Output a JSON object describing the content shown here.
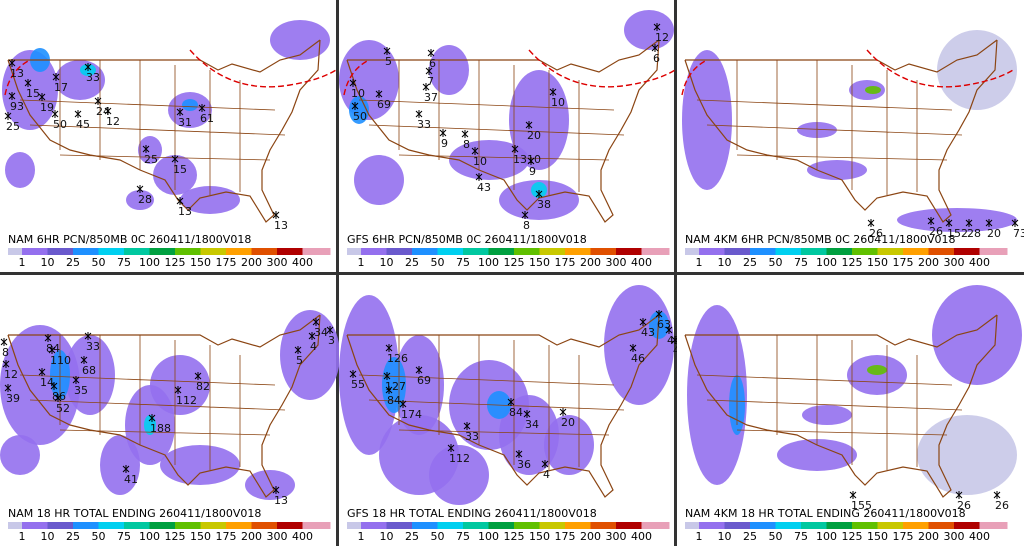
{
  "panels": [
    {
      "title": "NAM 6HR PCN/850MB 0C 260411/1800V018",
      "freezing_line": true,
      "labels": [
        "13",
        "15",
        "17",
        "33",
        "93",
        "19",
        "50",
        "45",
        "24",
        "12",
        "31",
        "61",
        "25",
        "25",
        "15",
        "28",
        "13",
        "13"
      ]
    },
    {
      "title": "GFS 6HR PCN/850MB 0C 260411/1800V018",
      "freezing_line": true,
      "labels": [
        "12",
        "6",
        "5",
        "6",
        "7",
        "37",
        "10",
        "69",
        "50",
        "33",
        "10",
        "20",
        "9",
        "8",
        "10",
        "1310",
        "9",
        "43",
        "38",
        "8"
      ]
    },
    {
      "title": "NAM 4KM 6HR PCN/850MB 0C 260411/1800V018",
      "freezing_line": true,
      "labels": [
        "26",
        "26",
        "152",
        "28",
        "20",
        "73"
      ]
    },
    {
      "title": "NAM 18 HR TOTAL ENDING 260411/1800V018",
      "freezing_line": false,
      "labels": [
        "8",
        "12",
        "39",
        "84",
        "110",
        "68",
        "33",
        "14",
        "86",
        "52",
        "35",
        "112",
        "82",
        "188",
        "41",
        "13",
        "4",
        "34",
        "5",
        "3"
      ]
    },
    {
      "title": "GFS 18 HR TOTAL ENDING 260411/1800V018",
      "freezing_line": false,
      "labels": [
        "126",
        "55",
        "127",
        "69",
        "84",
        "174",
        "84",
        "33",
        "34",
        "20",
        "112",
        "36",
        "4",
        "43",
        "46",
        "63",
        "43",
        "44"
      ]
    },
    {
      "title": "NAM 4KM 18 HR TOTAL ENDING 260411/1800V018",
      "freezing_line": false,
      "labels": [
        "155",
        "26",
        "26"
      ]
    }
  ],
  "legend": {
    "levels": [
      1,
      10,
      25,
      50,
      75,
      100,
      125,
      150,
      175,
      200,
      300,
      400
    ],
    "colors": [
      "#c8c8e8",
      "#9470ee",
      "#6a5acd",
      "#1e90ff",
      "#00d0f0",
      "#00c8a0",
      "#00a040",
      "#60c000",
      "#c8c800",
      "#ffa000",
      "#e05000",
      "#b00000",
      "#e8a0b8"
    ]
  }
}
